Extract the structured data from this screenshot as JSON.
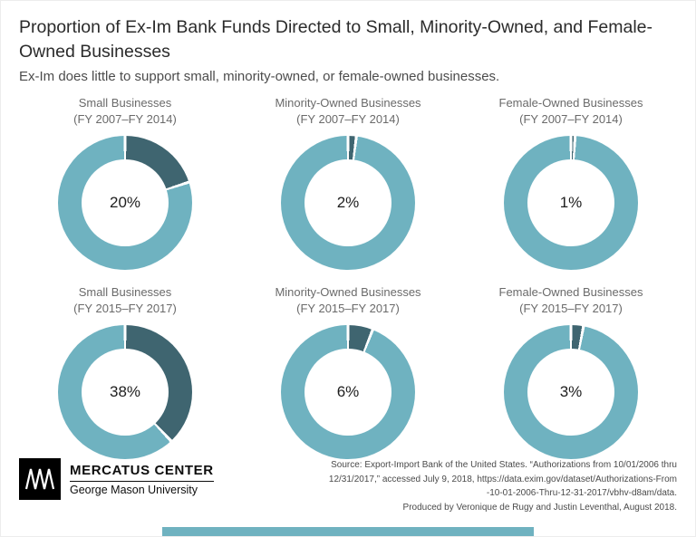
{
  "page": {
    "title": "Proportion of Ex-Im Bank Funds Directed to Small, Minority-Owned, and Female-Owned Businesses",
    "subtitle": "Ex-Im does little to support small, minority-owned, or female-owned businesses."
  },
  "colors": {
    "accent_light": "#6FB2C0",
    "accent_dark": "#3F6570"
  },
  "chart_data": {
    "type": "pie",
    "subtype": "donut-grid",
    "title": "Proportion of Ex-Im Bank Funds Directed to Small, Minority-Owned, and Female-Owned Businesses",
    "subtitle": "Ex-Im does little to support small, minority-owned, or female-owned businesses.",
    "units": "percent of Ex-Im Bank funds",
    "legend_position": "none",
    "segment_colors": {
      "value_segment": "#3F6570",
      "remainder_segment": "#6FB2C0"
    },
    "charts": [
      {
        "category": "Small Businesses",
        "period": "(FY 2007–FY 2014)",
        "value_pct": 20,
        "remainder_pct": 80,
        "value_label": "20%"
      },
      {
        "category": "Minority-Owned Businesses",
        "period": "(FY 2007–FY 2014)",
        "value_pct": 2,
        "remainder_pct": 98,
        "value_label": "2%"
      },
      {
        "category": "Female-Owned Businesses",
        "period": "(FY 2007–FY 2014)",
        "value_pct": 1,
        "remainder_pct": 99,
        "value_label": "1%"
      },
      {
        "category": "Small Businesses",
        "period": "(FY 2015–FY 2017)",
        "value_pct": 38,
        "remainder_pct": 62,
        "value_label": "38%"
      },
      {
        "category": "Minority-Owned Businesses",
        "period": "(FY 2015–FY 2017)",
        "value_pct": 6,
        "remainder_pct": 94,
        "value_label": "6%"
      },
      {
        "category": "Female-Owned Businesses",
        "period": "(FY 2015–FY 2017)",
        "value_pct": 3,
        "remainder_pct": 97,
        "value_label": "3%"
      }
    ]
  },
  "footer": {
    "brand_name": "MERCATUS CENTER",
    "brand_subtitle": "George Mason University",
    "source_lines": [
      "Source: Export-Import Bank of the United States. “Authorizations from 10/01/2006 thru",
      "12/31/2017,” accessed July 9, 2018, https://data.exim.gov/dataset/Authorizations-From",
      "-10-01-2006-Thru-12-31-2017/vbhv-d8am/data.",
      "Produced by Veronique de Rugy and Justin Leventhal, August 2018."
    ]
  }
}
